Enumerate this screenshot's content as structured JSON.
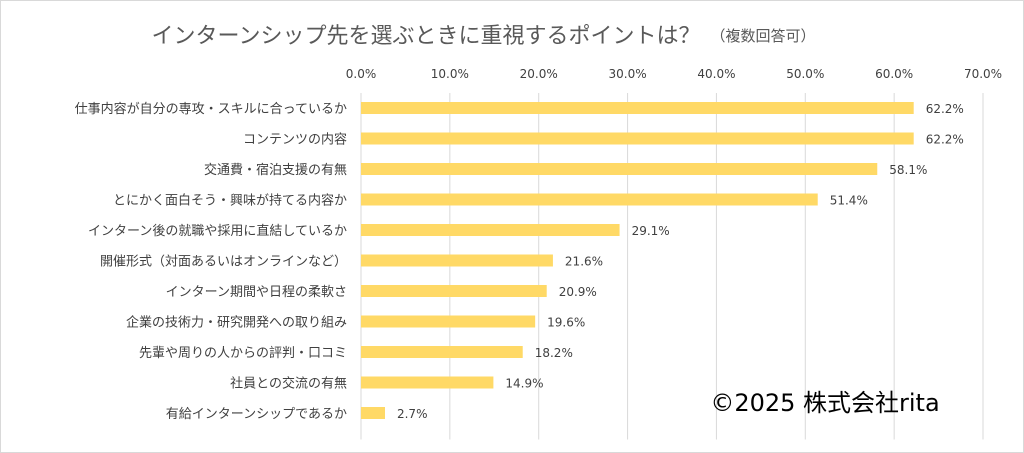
{
  "colors": {
    "bar": "#FFD966",
    "grid": "#D9D9D9",
    "text": "#404040",
    "title": "#595959"
  },
  "chart_data": {
    "type": "bar",
    "orientation": "horizontal",
    "title": "インターンシップ先を選ぶときに重視するポイントは？",
    "subtitle": "（複数回答可）",
    "xlim": [
      0,
      70
    ],
    "xticks": [
      "0.0%",
      "10.0%",
      "20.0%",
      "30.0%",
      "40.0%",
      "50.0%",
      "60.0%",
      "70.0%"
    ],
    "grid": true,
    "legend": "none",
    "categories": [
      "仕事内容が自分の専攻・スキルに合っているか",
      "コンテンツの内容",
      "交通費・宿泊支援の有無",
      "とにかく面白そう・興味が持てる内容か",
      "インターン後の就職や採用に直結しているか",
      "開催形式（対面あるいはオンラインなど）",
      "インターン期間や日程の柔軟さ",
      "企業の技術力・研究開発への取り組み",
      "先輩や周りの人からの評判・口コミ",
      "社員との交流の有無",
      "有給インターンシップであるか"
    ],
    "values": [
      62.2,
      62.2,
      58.1,
      51.4,
      29.1,
      21.6,
      20.9,
      19.6,
      18.2,
      14.9,
      2.7
    ],
    "value_labels": [
      "62.2%",
      "62.2%",
      "58.1%",
      "51.4%",
      "29.1%",
      "21.6%",
      "20.9%",
      "19.6%",
      "18.2%",
      "14.9%",
      "2.7%"
    ],
    "annotation": "©2025 株式会社rita"
  }
}
